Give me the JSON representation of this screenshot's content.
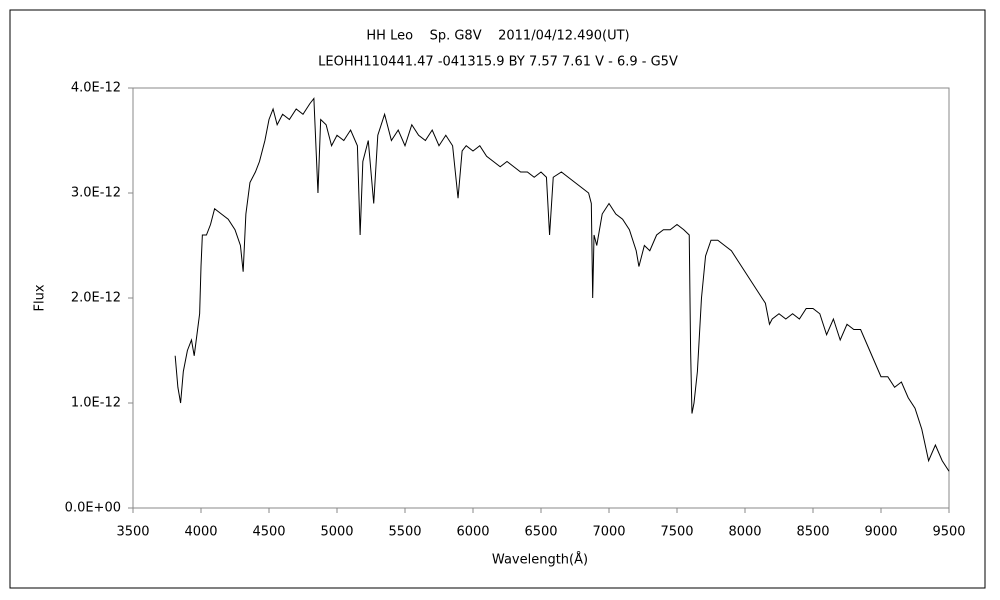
{
  "chart_data": {
    "type": "line",
    "title": "HH Leo    Sp. G8V    2011/04/12.490(UT)",
    "subtitle": "LEOHH110441.47 -041315.9 BY 7.57 7.61 V - 6.9 - G5V",
    "x_label": "Wavelength(Å)",
    "y_label": "Flux",
    "xlim": [
      3500,
      9500
    ],
    "xticks": [
      3500,
      4000,
      4500,
      5000,
      5500,
      6000,
      6500,
      7000,
      7500,
      8000,
      8500,
      9000,
      9500
    ],
    "ylim": [
      0,
      4e-12
    ],
    "yticks": [
      {
        "value": 0,
        "label": "0.0E+00"
      },
      {
        "value": 1e-12,
        "label": "1.0E-12"
      },
      {
        "value": 2e-12,
        "label": "2.0E-12"
      },
      {
        "value": 3e-12,
        "label": "3.0E-12"
      },
      {
        "value": 4e-12,
        "label": "4.0E-12"
      }
    ],
    "series": [
      {
        "color": "#000000",
        "x": [
          3810,
          3830,
          3850,
          3870,
          3900,
          3930,
          3950,
          3970,
          3990,
          4000,
          4010,
          4040,
          4070,
          4100,
          4150,
          4200,
          4250,
          4290,
          4310,
          4330,
          4360,
          4400,
          4430,
          4470,
          4500,
          4530,
          4560,
          4600,
          4650,
          4700,
          4750,
          4800,
          4830,
          4860,
          4880,
          4920,
          4960,
          5000,
          5050,
          5100,
          5150,
          5170,
          5190,
          5230,
          5270,
          5300,
          5350,
          5400,
          5450,
          5500,
          5550,
          5600,
          5650,
          5700,
          5750,
          5800,
          5850,
          5890,
          5920,
          5950,
          6000,
          6050,
          6100,
          6150,
          6200,
          6250,
          6300,
          6350,
          6400,
          6450,
          6500,
          6540,
          6563,
          6590,
          6650,
          6700,
          6750,
          6800,
          6850,
          6870,
          6880,
          6890,
          6910,
          6950,
          7000,
          7050,
          7100,
          7150,
          7200,
          7220,
          7260,
          7300,
          7350,
          7400,
          7450,
          7500,
          7550,
          7590,
          7600,
          7610,
          7625,
          7650,
          7680,
          7710,
          7750,
          7800,
          7850,
          7900,
          7950,
          8000,
          8050,
          8100,
          8150,
          8180,
          8200,
          8250,
          8300,
          8350,
          8400,
          8450,
          8500,
          8550,
          8600,
          8650,
          8700,
          8750,
          8800,
          8850,
          8900,
          8950,
          9000,
          9050,
          9100,
          9150,
          9200,
          9250,
          9300,
          9350,
          9400,
          9450,
          9500
        ],
        "values": [
          1.45e-12,
          1.15e-12,
          1e-12,
          1.3e-12,
          1.5e-12,
          1.6e-12,
          1.45e-12,
          1.65e-12,
          1.85e-12,
          2.3e-12,
          2.6e-12,
          2.6e-12,
          2.7e-12,
          2.85e-12,
          2.8e-12,
          2.75e-12,
          2.65e-12,
          2.5e-12,
          2.25e-12,
          2.8e-12,
          3.1e-12,
          3.2e-12,
          3.3e-12,
          3.5e-12,
          3.7e-12,
          3.8e-12,
          3.65e-12,
          3.75e-12,
          3.7e-12,
          3.8e-12,
          3.75e-12,
          3.85e-12,
          3.9e-12,
          3e-12,
          3.7e-12,
          3.65e-12,
          3.45e-12,
          3.55e-12,
          3.5e-12,
          3.6e-12,
          3.45e-12,
          2.6e-12,
          3.3e-12,
          3.5e-12,
          2.9e-12,
          3.55e-12,
          3.75e-12,
          3.5e-12,
          3.6e-12,
          3.45e-12,
          3.65e-12,
          3.55e-12,
          3.5e-12,
          3.6e-12,
          3.45e-12,
          3.55e-12,
          3.45e-12,
          2.95e-12,
          3.4e-12,
          3.45e-12,
          3.4e-12,
          3.45e-12,
          3.35e-12,
          3.3e-12,
          3.25e-12,
          3.3e-12,
          3.25e-12,
          3.2e-12,
          3.2e-12,
          3.15e-12,
          3.2e-12,
          3.15e-12,
          2.6e-12,
          3.15e-12,
          3.2e-12,
          3.15e-12,
          3.1e-12,
          3.05e-12,
          3e-12,
          2.9e-12,
          2e-12,
          2.6e-12,
          2.5e-12,
          2.8e-12,
          2.9e-12,
          2.8e-12,
          2.75e-12,
          2.65e-12,
          2.45e-12,
          2.3e-12,
          2.5e-12,
          2.45e-12,
          2.6e-12,
          2.65e-12,
          2.65e-12,
          2.7e-12,
          2.65e-12,
          2.6e-12,
          1.5e-12,
          9e-13,
          1e-12,
          1.3e-12,
          2e-12,
          2.4e-12,
          2.55e-12,
          2.55e-12,
          2.5e-12,
          2.45e-12,
          2.35e-12,
          2.25e-12,
          2.15e-12,
          2.05e-12,
          1.95e-12,
          1.75e-12,
          1.8e-12,
          1.85e-12,
          1.8e-12,
          1.85e-12,
          1.8e-12,
          1.9e-12,
          1.9e-12,
          1.85e-12,
          1.65e-12,
          1.8e-12,
          1.6e-12,
          1.75e-12,
          1.7e-12,
          1.7e-12,
          1.55e-12,
          1.4e-12,
          1.25e-12,
          1.25e-12,
          1.15e-12,
          1.2e-12,
          1.05e-12,
          9.5e-13,
          7.5e-13,
          4.5e-13,
          6e-13,
          4.5e-13,
          3.5e-13
        ]
      }
    ]
  }
}
